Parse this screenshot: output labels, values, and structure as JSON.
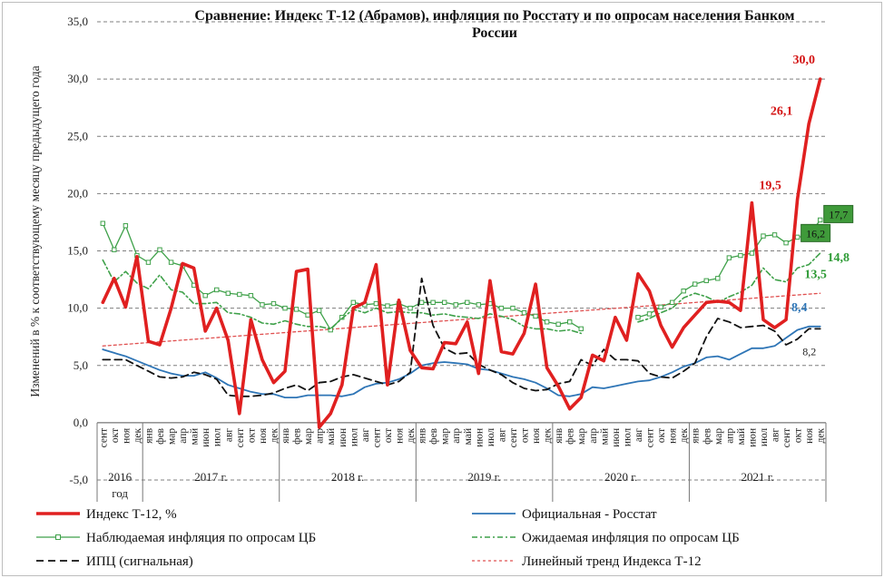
{
  "chart_data": {
    "type": "line",
    "title": "Сравнение: Индекс Т-12 (Абрамов), инфляция по Росстату и по опросам населения Банком России",
    "title_lines": [
      "Сравнение: Индекс Т-12 (Абрамов), инфляция по Росстату и по опросам населения Банком",
      "России"
    ],
    "ylabel": "Изменений в % к соответствующему месяцу предыдущего года",
    "ylim": [
      -5,
      35
    ],
    "yticks": [
      "-5,0",
      "0,0",
      "5,0",
      "10,0",
      "15,0",
      "20,0",
      "25,0",
      "30,0",
      "35,0"
    ],
    "grid": true,
    "legend_position": "bottom",
    "months": [
      "сент",
      "окт",
      "ноя",
      "дек",
      "янв",
      "фев",
      "мар",
      "апр",
      "май",
      "июн",
      "июл",
      "авг",
      "сент",
      "окт",
      "ноя",
      "дек",
      "янв",
      "фев",
      "мар",
      "апр",
      "май",
      "июн",
      "июл",
      "авг",
      "сент",
      "окт",
      "ноя",
      "дек",
      "янв",
      "фев",
      "мар",
      "апр",
      "май",
      "июн",
      "июл",
      "авг",
      "сент",
      "окт",
      "ноя",
      "дек",
      "янв",
      "фев",
      "мар",
      "апр",
      "май",
      "июн",
      "июл",
      "авг",
      "сент",
      "окт",
      "ноя",
      "дек",
      "янв",
      "фев",
      "мар",
      "апр",
      "май",
      "июн",
      "июл",
      "авг",
      "сент",
      "окт",
      "ноя",
      "дек"
    ],
    "year_groups": [
      {
        "label": "2016",
        "label2": "год",
        "start": 0,
        "end": 3
      },
      {
        "label": "2017 г.",
        "label2": "",
        "start": 4,
        "end": 15
      },
      {
        "label": "2018 г.",
        "label2": "",
        "start": 16,
        "end": 27
      },
      {
        "label": "2019 г.",
        "label2": "",
        "start": 28,
        "end": 39
      },
      {
        "label": "2020 г.",
        "label2": "",
        "start": 40,
        "end": 51
      },
      {
        "label": "2021 г.",
        "label2": "",
        "start": 52,
        "end": 63
      }
    ],
    "series": [
      {
        "name": "Индекс Т-12, %",
        "color": "#e02020",
        "style": "solid-thick",
        "values": [
          10.5,
          12.6,
          10.1,
          14.5,
          7.1,
          6.8,
          10.0,
          13.9,
          13.5,
          8.0,
          10.0,
          7.2,
          0.8,
          9.0,
          5.5,
          3.5,
          4.5,
          13.2,
          13.4,
          -0.4,
          0.8,
          3.3,
          10.0,
          10.5,
          13.8,
          3.3,
          10.7,
          6.3,
          4.8,
          4.7,
          7.0,
          6.9,
          8.8,
          4.3,
          12.4,
          6.2,
          6.0,
          7.8,
          12.1,
          4.8,
          3.2,
          1.2,
          2.2,
          5.9,
          5.4,
          9.2,
          7.2,
          13.0,
          11.5,
          8.5,
          6.6,
          8.3,
          9.4,
          10.5,
          10.6,
          10.5,
          9.8,
          19.2,
          9.0,
          8.3,
          9.0,
          19.5,
          26.1,
          30.0
        ]
      },
      {
        "name": "Официальная - Росстат",
        "color": "#2e75b6",
        "style": "solid",
        "values": [
          6.4,
          6.1,
          5.8,
          5.4,
          5.0,
          4.6,
          4.3,
          4.1,
          4.1,
          4.4,
          3.9,
          3.3,
          3.0,
          2.7,
          2.5,
          2.5,
          2.2,
          2.2,
          2.4,
          2.4,
          2.4,
          2.3,
          2.5,
          3.1,
          3.4,
          3.5,
          3.8,
          4.3,
          5.0,
          5.2,
          5.3,
          5.2,
          5.1,
          4.7,
          4.6,
          4.3,
          4.0,
          3.8,
          3.5,
          3.0,
          2.4,
          2.3,
          2.5,
          3.1,
          3.0,
          3.2,
          3.4,
          3.6,
          3.7,
          4.0,
          4.4,
          4.9,
          5.2,
          5.7,
          5.8,
          5.5,
          6.0,
          6.5,
          6.5,
          6.7,
          7.4,
          8.1,
          8.4,
          8.4
        ]
      },
      {
        "name": "Наблюдаемая  инфляция по опросам ЦБ",
        "color": "#3fa14a",
        "style": "solid-marker",
        "values": [
          17.4,
          15.1,
          17.2,
          14.6,
          14.0,
          15.1,
          14.0,
          13.7,
          12.0,
          11.1,
          11.6,
          11.3,
          11.2,
          11.1,
          10.3,
          10.4,
          10.0,
          9.9,
          9.4,
          9.8,
          8.1,
          9.2,
          10.5,
          10.3,
          10.4,
          10.2,
          10.4,
          10.0,
          10.5,
          10.5,
          10.5,
          10.3,
          10.5,
          10.3,
          10.4,
          10.0,
          10.0,
          9.6,
          9.3,
          8.8,
          8.6,
          8.8,
          8.2,
          null,
          null,
          null,
          null,
          9.2,
          9.5,
          10.1,
          10.5,
          11.5,
          12.1,
          12.4,
          12.6,
          14.4,
          14.6,
          14.8,
          16.3,
          16.4,
          15.7,
          16.2,
          16.3,
          17.7
        ]
      },
      {
        "name": "Ожидаемая инфляция по опросам ЦБ",
        "color": "#3fa14a",
        "style": "dash-dot",
        "values": [
          14.2,
          12.3,
          13.2,
          12.2,
          11.7,
          12.9,
          11.6,
          11.4,
          10.4,
          10.4,
          10.5,
          9.6,
          9.5,
          9.2,
          8.7,
          8.6,
          8.9,
          8.6,
          8.4,
          8.4,
          8.2,
          9.1,
          9.9,
          9.6,
          10.0,
          9.6,
          9.7,
          9.6,
          9.6,
          9.4,
          9.5,
          9.3,
          9.2,
          9.1,
          9.5,
          9.3,
          9.0,
          8.4,
          8.2,
          8.2,
          8.0,
          8.1,
          7.8,
          null,
          null,
          null,
          null,
          8.8,
          9.1,
          9.6,
          10.0,
          10.9,
          11.3,
          11.0,
          10.5,
          11.0,
          11.4,
          12.0,
          13.5,
          12.5,
          12.3,
          13.5,
          13.8,
          14.8
        ]
      },
      {
        "name": "ИПЦ (сигнальная)",
        "color": "#111111",
        "style": "dashed",
        "values": [
          5.5,
          5.5,
          5.5,
          5.0,
          4.5,
          4.0,
          3.9,
          4.0,
          4.4,
          4.2,
          3.8,
          2.4,
          2.3,
          2.3,
          2.4,
          2.6,
          3.0,
          3.3,
          2.8,
          3.5,
          3.6,
          4.0,
          4.2,
          3.9,
          3.6,
          3.3,
          3.6,
          4.4,
          12.6,
          8.5,
          6.5,
          6.0,
          6.1,
          5.1,
          4.6,
          4.2,
          3.5,
          3.0,
          2.8,
          2.9,
          3.4,
          3.6,
          5.5,
          5.0,
          6.4,
          5.5,
          5.5,
          5.4,
          4.3,
          4.0,
          3.9,
          4.5,
          5.2,
          7.5,
          9.1,
          8.8,
          8.3,
          8.4,
          8.5,
          8.0,
          6.8,
          7.3,
          8.2,
          8.2
        ]
      },
      {
        "name": "Линейный тренд Индекса Т-12",
        "color": "#e05050",
        "style": "dotted",
        "values_start_end": [
          6.7,
          11.3
        ]
      }
    ],
    "annotations": [
      {
        "text": "30,0",
        "series": 0,
        "index": 63,
        "color": "red"
      },
      {
        "text": "26,1",
        "series": 0,
        "index": 62,
        "color": "red"
      },
      {
        "text": "19,5",
        "series": 0,
        "index": 61,
        "color": "red"
      },
      {
        "text": "17,7",
        "series": 2,
        "index": 63,
        "color": "greenbox"
      },
      {
        "text": "16,2",
        "series": 2,
        "index": 61,
        "color": "greenbox"
      },
      {
        "text": "14,8",
        "series": 3,
        "index": 63,
        "color": "green"
      },
      {
        "text": "13,5",
        "series": 3,
        "index": 61,
        "color": "green"
      },
      {
        "text": "8,4",
        "series": 1,
        "index": 63,
        "color": "blue"
      },
      {
        "text": "8,2",
        "series": 4,
        "index": 63,
        "color": "black"
      }
    ]
  },
  "colors": {
    "red": "#e02020",
    "blue": "#2e75b6",
    "green": "#3fa14a",
    "green_box": "#3f9a3a",
    "black": "#111111",
    "grid": "#7f7f7f"
  }
}
